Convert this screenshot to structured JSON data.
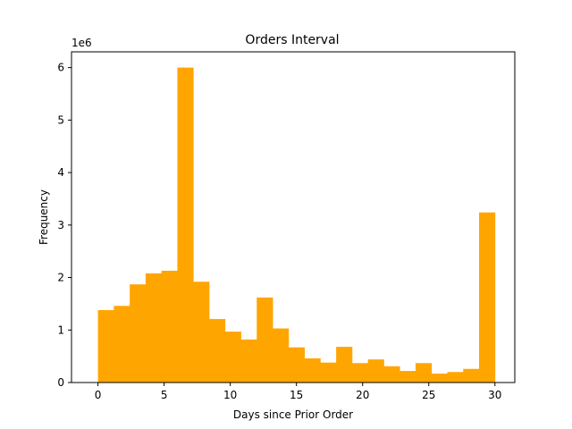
{
  "chart_data": {
    "type": "bar",
    "title": "Orders Interval",
    "xlabel": "Days since Prior Order",
    "ylabel": "Frequency",
    "y_offset_label": "1e6",
    "xlim": [
      -2.0,
      31.5
    ],
    "ylim": [
      0,
      6.3
    ],
    "x_ticks": [
      0,
      5,
      10,
      15,
      20,
      25,
      30
    ],
    "y_ticks": [
      0,
      1,
      2,
      3,
      4,
      5,
      6
    ],
    "bar_color": "#ffa500",
    "bins": [
      {
        "start": 0.0,
        "end": 1.2,
        "value": 1.38
      },
      {
        "start": 1.2,
        "end": 2.4,
        "value": 1.46
      },
      {
        "start": 2.4,
        "end": 3.6,
        "value": 1.87
      },
      {
        "start": 3.6,
        "end": 4.8,
        "value": 2.08
      },
      {
        "start": 4.8,
        "end": 6.0,
        "value": 2.13
      },
      {
        "start": 6.0,
        "end": 7.2,
        "value": 6.0
      },
      {
        "start": 7.2,
        "end": 8.4,
        "value": 1.92
      },
      {
        "start": 8.4,
        "end": 9.6,
        "value": 1.21
      },
      {
        "start": 9.6,
        "end": 10.8,
        "value": 0.97
      },
      {
        "start": 10.8,
        "end": 12.0,
        "value": 0.82
      },
      {
        "start": 12.0,
        "end": 13.2,
        "value": 1.62
      },
      {
        "start": 13.2,
        "end": 14.4,
        "value": 1.03
      },
      {
        "start": 14.4,
        "end": 15.6,
        "value": 0.67
      },
      {
        "start": 15.6,
        "end": 16.8,
        "value": 0.46
      },
      {
        "start": 16.8,
        "end": 18.0,
        "value": 0.38
      },
      {
        "start": 18.0,
        "end": 19.2,
        "value": 0.68
      },
      {
        "start": 19.2,
        "end": 20.4,
        "value": 0.37
      },
      {
        "start": 20.4,
        "end": 21.6,
        "value": 0.44
      },
      {
        "start": 21.6,
        "end": 22.8,
        "value": 0.31
      },
      {
        "start": 22.8,
        "end": 24.0,
        "value": 0.22
      },
      {
        "start": 24.0,
        "end": 25.2,
        "value": 0.37
      },
      {
        "start": 25.2,
        "end": 26.4,
        "value": 0.17
      },
      {
        "start": 26.4,
        "end": 27.6,
        "value": 0.2
      },
      {
        "start": 27.6,
        "end": 28.8,
        "value": 0.26
      },
      {
        "start": 28.8,
        "end": 30.0,
        "value": 3.24
      }
    ]
  }
}
